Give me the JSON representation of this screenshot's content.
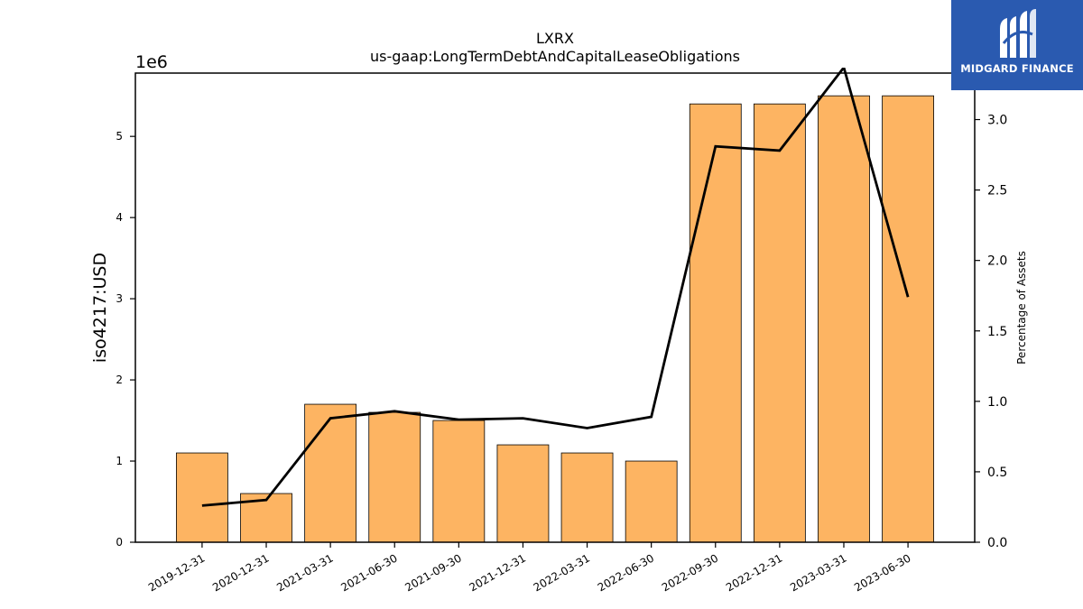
{
  "logo": {
    "text": "MIDGARD FINANCE",
    "icon": "midgard-logo-icon",
    "color": "#2a5ab0"
  },
  "chart_data": {
    "type": "bar",
    "title": "LXRX",
    "subtitle": "us-gaap:LongTermDebtAndCapitalLeaseObligations",
    "categories": [
      "2019-12-31",
      "2020-12-31",
      "2021-03-31",
      "2021-06-30",
      "2021-09-30",
      "2021-12-31",
      "2022-03-31",
      "2022-06-30",
      "2022-09-30",
      "2022-12-31",
      "2023-03-31",
      "2023-06-30"
    ],
    "series": [
      {
        "type": "bar",
        "axis": "left",
        "color": "#fdb462",
        "values": [
          1100000,
          600000,
          1700000,
          1600000,
          1500000,
          1200000,
          1100000,
          1000000,
          5400000,
          5400000,
          5500000,
          5500000
        ]
      },
      {
        "type": "line",
        "axis": "right",
        "color": "#000000",
        "values": [
          0.26,
          0.3,
          0.88,
          0.93,
          0.87,
          0.88,
          0.81,
          0.89,
          2.81,
          2.78,
          3.37,
          1.74
        ]
      }
    ],
    "ylabel": "iso4217:USD",
    "y_offset_label": "1e6",
    "y_scale": 1000000,
    "ylim": [
      0,
      5780000
    ],
    "yticks": [
      0,
      1,
      2,
      3,
      4,
      5
    ],
    "y2label": "Percentage of Assets",
    "y2lim": [
      0,
      3.33
    ],
    "y2ticks": [
      "0.0",
      "0.5",
      "1.0",
      "1.5",
      "2.0",
      "2.5",
      "3.0"
    ],
    "grid": false,
    "legend": "none"
  }
}
